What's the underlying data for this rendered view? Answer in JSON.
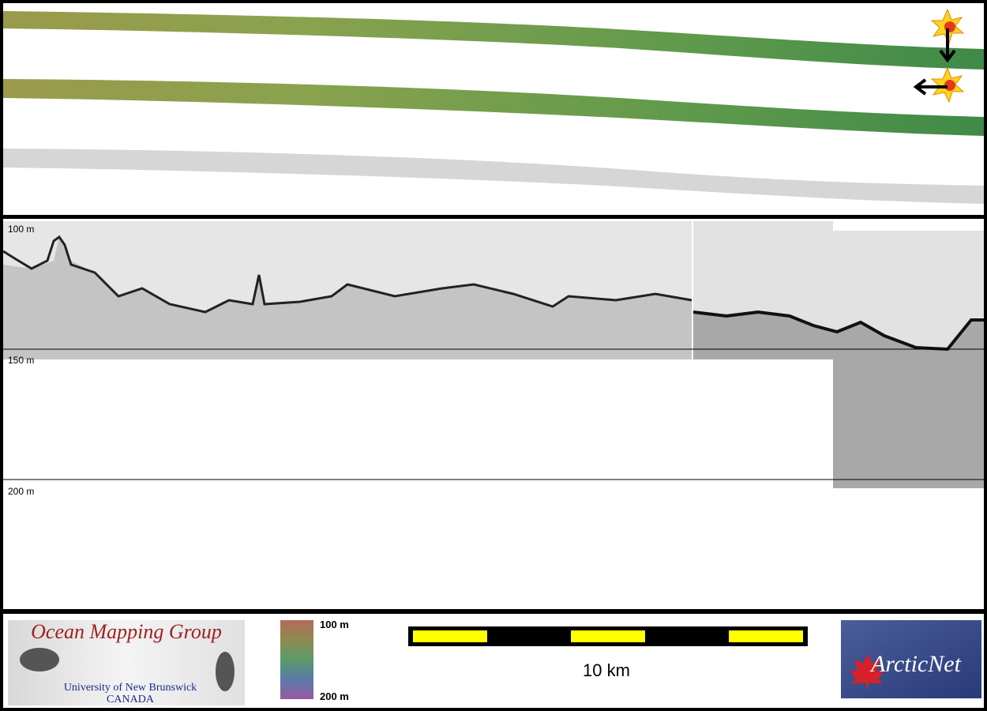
{
  "profile": {
    "depth_labels": [
      "100 m",
      "150 m",
      "200 m"
    ]
  },
  "legend": {
    "colorbar_top": "100 m",
    "colorbar_bottom": "200 m",
    "scale": "10 km"
  },
  "logos": {
    "omg_title": "Ocean Mapping Group",
    "omg_university": "University of New Brunswick",
    "omg_country": "CANADA",
    "arcticnet": "ArcticNet"
  }
}
